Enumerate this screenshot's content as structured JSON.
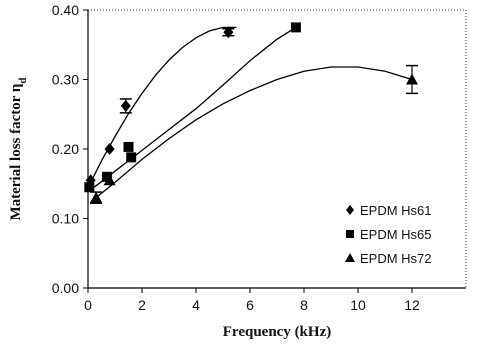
{
  "chart_data": {
    "type": "scatter",
    "title": "",
    "xlabel": "Frequency (kHz)",
    "ylabel_main": "Material loss factor η",
    "ylabel_sub": "d",
    "xlim": [
      0,
      14
    ],
    "ylim": [
      0,
      0.4
    ],
    "xticks": [
      0,
      2,
      4,
      6,
      8,
      10,
      12
    ],
    "yticks": [
      0.0,
      0.1,
      0.2,
      0.3,
      0.4
    ],
    "ytick_labels": [
      "0.00",
      "0.10",
      "0.20",
      "0.30",
      "0.40"
    ],
    "grid": false,
    "legend_position": "lower-right",
    "series": [
      {
        "name": "EPDM Hs61",
        "marker": "diamond",
        "points": [
          {
            "x": 0.1,
            "y": 0.155,
            "err": 0.0
          },
          {
            "x": 0.8,
            "y": 0.2,
            "err": 0.0
          },
          {
            "x": 1.4,
            "y": 0.262,
            "err": 0.01
          },
          {
            "x": 5.2,
            "y": 0.368,
            "err": 0.005
          }
        ],
        "curve": [
          [
            0.1,
            0.152
          ],
          [
            0.5,
            0.183
          ],
          [
            1,
            0.218
          ],
          [
            1.5,
            0.251
          ],
          [
            2,
            0.28
          ],
          [
            2.5,
            0.306
          ],
          [
            3,
            0.328
          ],
          [
            3.5,
            0.346
          ],
          [
            4,
            0.36
          ],
          [
            4.5,
            0.37
          ],
          [
            5,
            0.375
          ],
          [
            5.5,
            0.375
          ]
        ]
      },
      {
        "name": "EPDM Hs65",
        "marker": "square",
        "points": [
          {
            "x": 0.05,
            "y": 0.145,
            "err": 0.0
          },
          {
            "x": 0.7,
            "y": 0.16,
            "err": 0.0
          },
          {
            "x": 1.5,
            "y": 0.203,
            "err": 0.0
          },
          {
            "x": 1.6,
            "y": 0.188,
            "err": 0.0
          },
          {
            "x": 7.7,
            "y": 0.375,
            "err": 0.0
          }
        ],
        "curve": [
          [
            0.05,
            0.14
          ],
          [
            0.5,
            0.153
          ],
          [
            1,
            0.168
          ],
          [
            1.5,
            0.183
          ],
          [
            2,
            0.198
          ],
          [
            3,
            0.228
          ],
          [
            4,
            0.258
          ],
          [
            5,
            0.292
          ],
          [
            6,
            0.327
          ],
          [
            7,
            0.358
          ],
          [
            7.7,
            0.375
          ]
        ]
      },
      {
        "name": "EPDM Hs72",
        "marker": "triangle",
        "points": [
          {
            "x": 0.3,
            "y": 0.13,
            "err": 0.008
          },
          {
            "x": 0.8,
            "y": 0.155,
            "err": 0.0
          },
          {
            "x": 12.0,
            "y": 0.3,
            "err": 0.02
          }
        ],
        "curve": [
          [
            0.3,
            0.13
          ],
          [
            1,
            0.152
          ],
          [
            2,
            0.185
          ],
          [
            3,
            0.215
          ],
          [
            4,
            0.242
          ],
          [
            5,
            0.265
          ],
          [
            6,
            0.284
          ],
          [
            7,
            0.3
          ],
          [
            8,
            0.312
          ],
          [
            9,
            0.318
          ],
          [
            10,
            0.318
          ],
          [
            11,
            0.312
          ],
          [
            12,
            0.3
          ]
        ]
      }
    ]
  }
}
